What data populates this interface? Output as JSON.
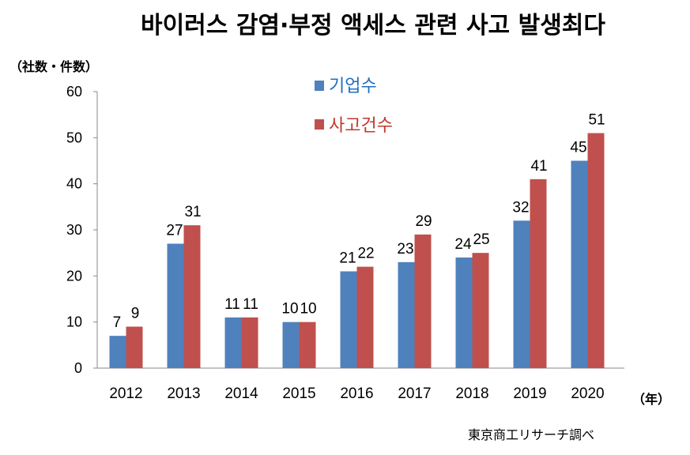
{
  "colors": {
    "series_companies": "#4f81bd",
    "series_incidents": "#c0504d",
    "legend_text_companies": "#1f6fbf",
    "legend_text_incidents": "#c0392b",
    "axis": "#888888"
  },
  "chart_data": {
    "type": "bar",
    "title": "바이러스 감염·부정 액세스 관련 사고 발생최다",
    "ylabel": "（社数・件数）",
    "xlabel": "（年）",
    "categories": [
      "2012",
      "2013",
      "2014",
      "2015",
      "2016",
      "2017",
      "2018",
      "2019",
      "2020"
    ],
    "ylim": [
      0,
      60
    ],
    "yticks": [
      "0",
      "10",
      "20",
      "30",
      "40",
      "50",
      "60"
    ],
    "series": [
      {
        "name": "기업수",
        "values": [
          7,
          27,
          11,
          10,
          21,
          23,
          24,
          32,
          45
        ]
      },
      {
        "name": "사고건수",
        "values": [
          9,
          31,
          11,
          10,
          22,
          29,
          25,
          41,
          51
        ]
      }
    ],
    "legend_position": "top-left",
    "grid": false,
    "source": "東京商工リサーチ調べ"
  }
}
